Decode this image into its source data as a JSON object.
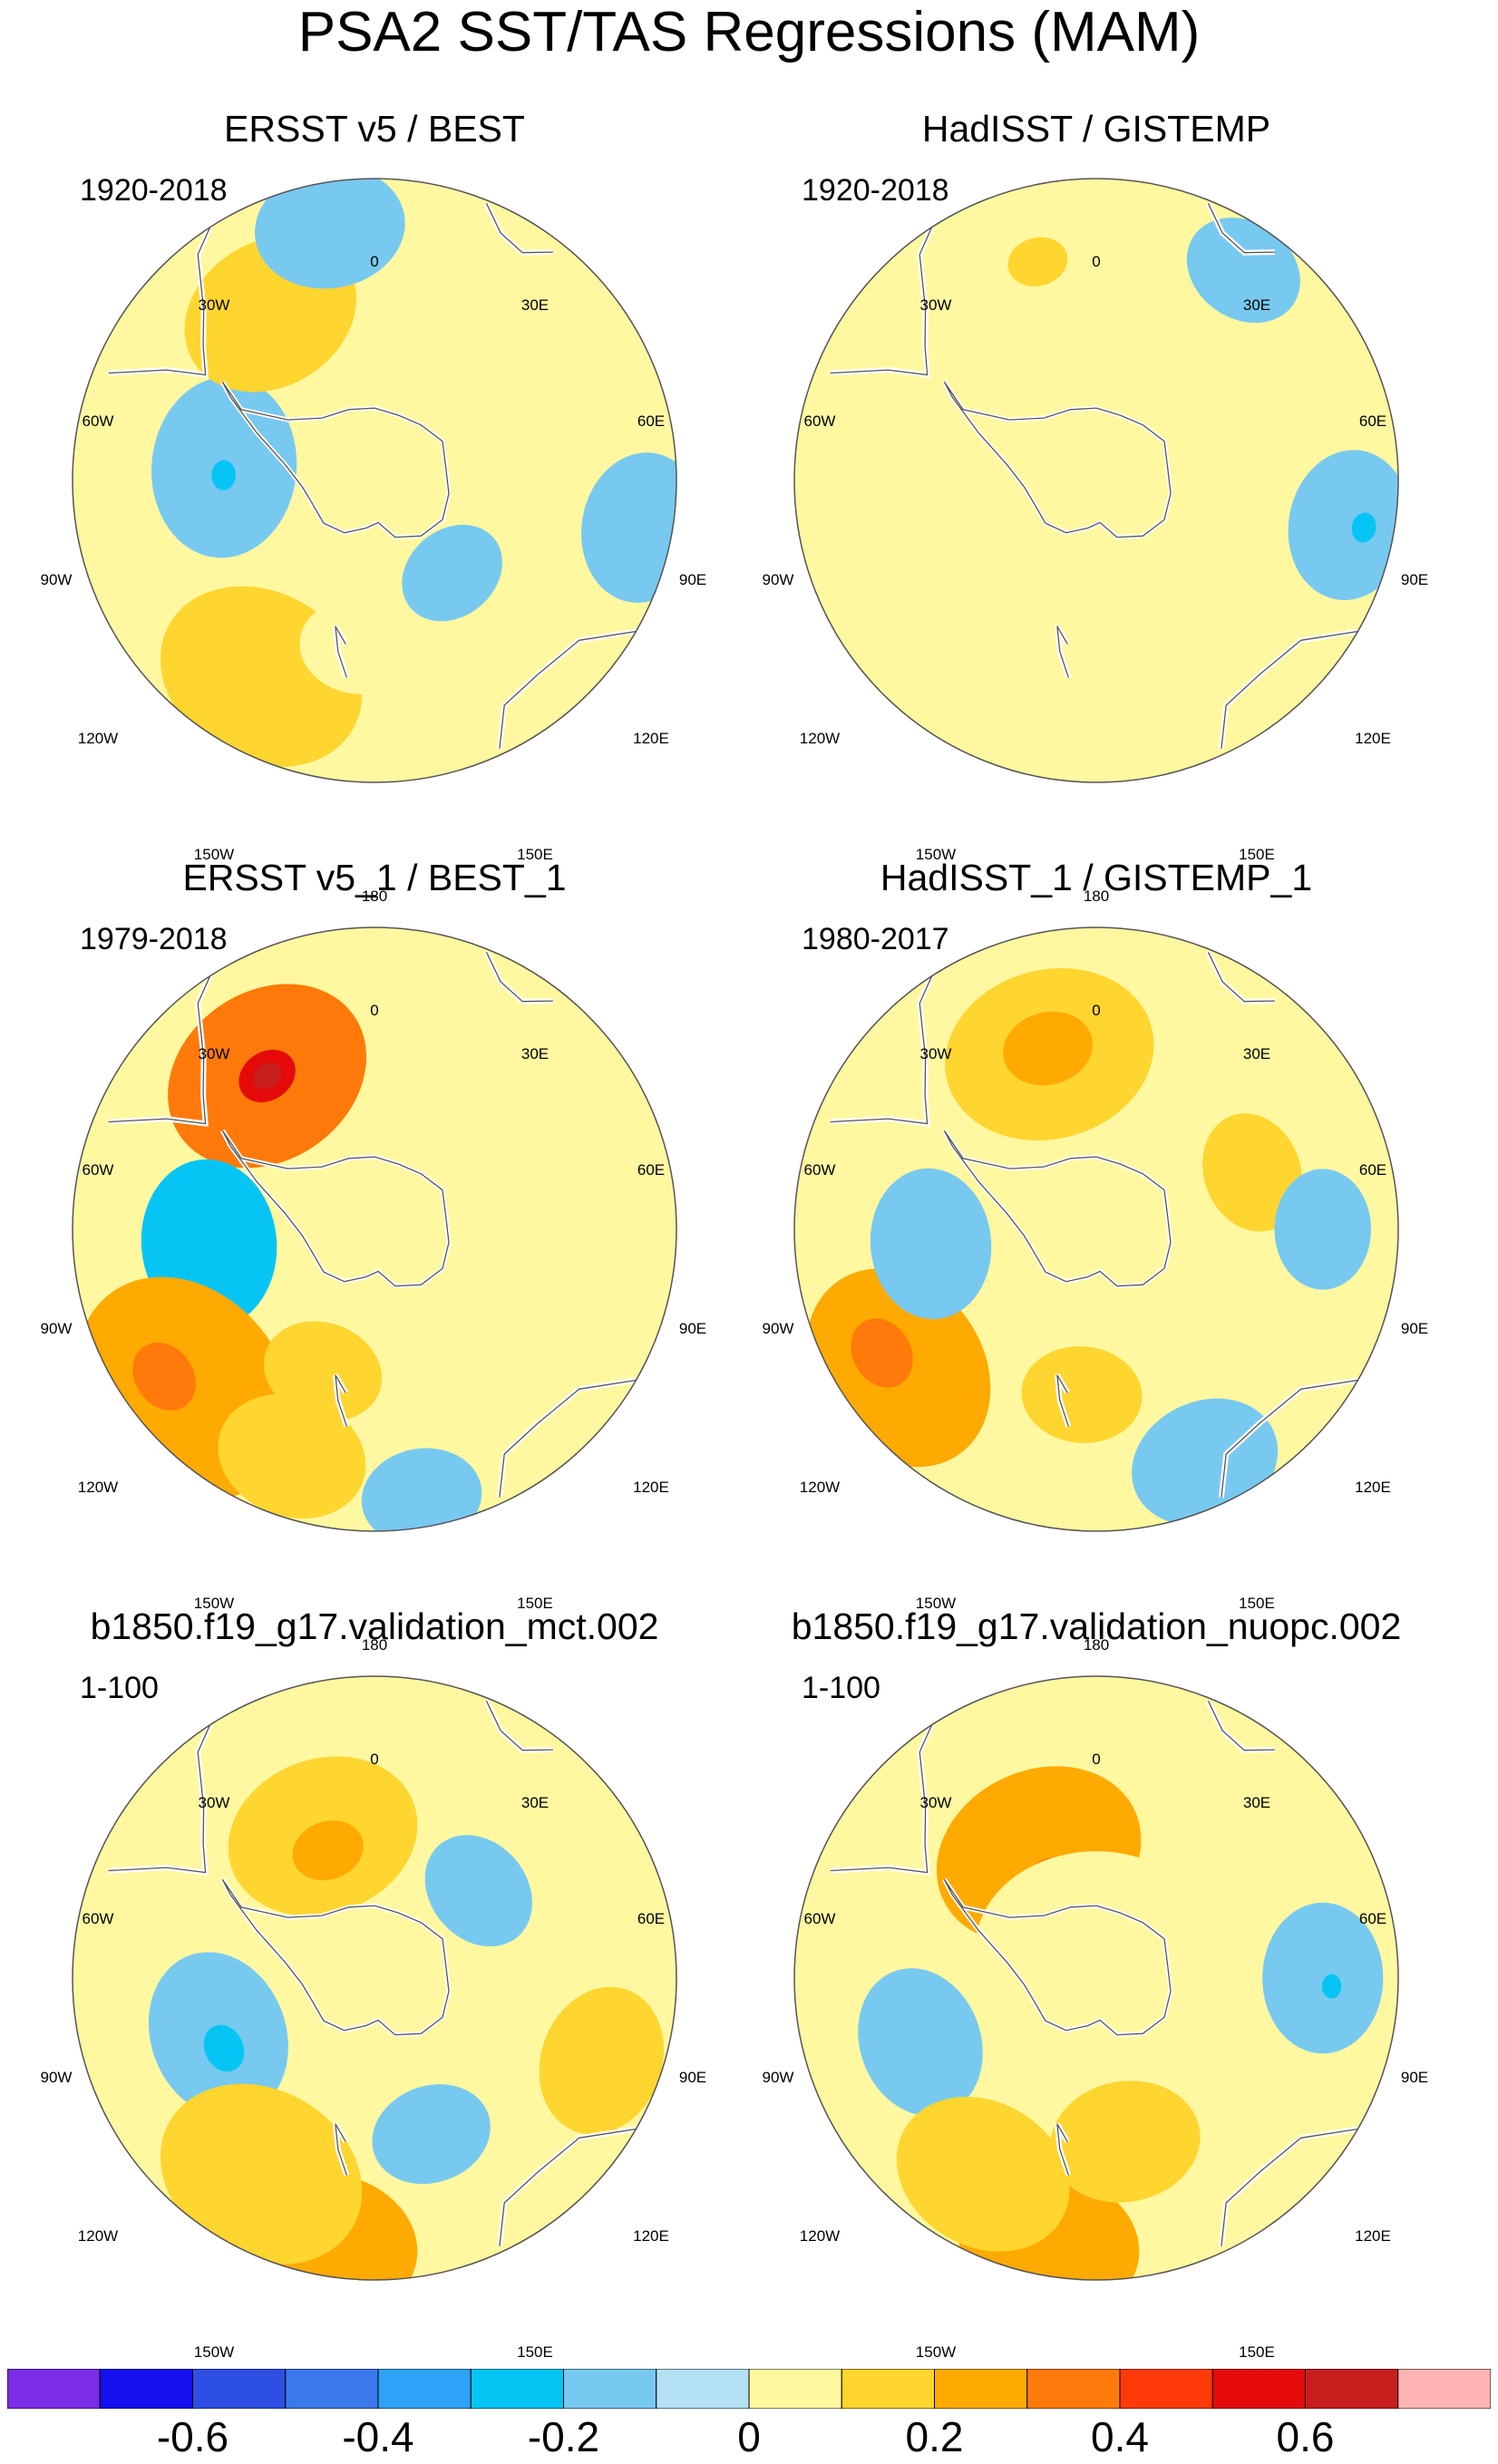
{
  "title": "PSA2 SST/TAS Regressions (MAM)",
  "chart_data": {
    "type": "heatmap",
    "projection": "south polar stereographic",
    "variable": "SST/TAS regression on PSA2",
    "season": "MAM",
    "longitude_labels": [
      "0",
      "30E",
      "60E",
      "90E",
      "120E",
      "150E",
      "180",
      "150W",
      "120W",
      "90W",
      "60W",
      "30W"
    ],
    "colorbar": {
      "levels": [
        -0.7,
        -0.6,
        -0.5,
        -0.4,
        -0.3,
        -0.2,
        -0.1,
        0,
        0.1,
        0.2,
        0.3,
        0.4,
        0.5,
        0.6,
        0.7
      ],
      "colors": [
        "#7b2ce6",
        "#1410f0",
        "#2e4fe3",
        "#3b78ec",
        "#2da2f7",
        "#06c5f5",
        "#78c9f0",
        "#b3e0f2",
        "#fff8a1",
        "#ffd530",
        "#ffaa00",
        "#ff7a0a",
        "#ff3a0a",
        "#e50b0b",
        "#c81e1e",
        "#ffb3b3"
      ],
      "tick_labels": [
        "-0.6",
        "-0.4",
        "-0.2",
        "0",
        "0.2",
        "0.4",
        "0.6"
      ],
      "tick_values": [
        -0.6,
        -0.4,
        -0.2,
        0,
        0.2,
        0.4,
        0.6
      ]
    },
    "panels": [
      {
        "title": "ERSST v5 / BEST",
        "period": "1920-2018",
        "features": [
          {
            "kind": "anomaly",
            "lon": -85,
            "lat_dist": 0.5,
            "value": -0.15,
            "extent": 0.3
          },
          {
            "kind": "anomaly",
            "lon": -88,
            "lat_dist": 0.5,
            "value": -0.25,
            "extent": 0.05
          },
          {
            "kind": "anomaly",
            "lon": -32,
            "lat_dist": 0.65,
            "value": 0.12,
            "extent": 0.3
          },
          {
            "kind": "anomaly",
            "lon": -30,
            "lat_dist": 0.72,
            "value": 0.18,
            "extent": 0.1
          },
          {
            "kind": "anomaly",
            "lon": -150,
            "lat_dist": 0.75,
            "value": 0.1,
            "extent": 0.35
          },
          {
            "kind": "anomaly",
            "lon": -110,
            "lat_dist": 0.9,
            "value": 0.08,
            "extent": 0.2
          },
          {
            "kind": "anomaly",
            "lon": -175,
            "lat_dist": 0.55,
            "value": 0.08,
            "extent": 0.2
          },
          {
            "kind": "anomaly",
            "lon": 75,
            "lat_dist": 0.6,
            "value": 0.06,
            "extent": 0.18
          },
          {
            "kind": "anomaly",
            "lon": -10,
            "lat_dist": 0.85,
            "value": -0.12,
            "extent": 0.25
          },
          {
            "kind": "anomaly",
            "lon": 100,
            "lat_dist": 0.9,
            "value": -0.12,
            "extent": 0.25
          },
          {
            "kind": "anomaly",
            "lon": 140,
            "lat_dist": 0.4,
            "value": -0.12,
            "extent": 0.18
          }
        ]
      },
      {
        "title": "HadISST / GISTEMP",
        "period": "1920-2018",
        "features": [
          {
            "kind": "anomaly",
            "lon": 160,
            "lat_dist": 0.55,
            "value": 0.08,
            "extent": 0.45
          },
          {
            "kind": "anomaly",
            "lon": -140,
            "lat_dist": 0.7,
            "value": 0.06,
            "extent": 0.35
          },
          {
            "kind": "anomaly",
            "lon": -20,
            "lat_dist": 0.7,
            "value": 0.07,
            "extent": 0.4
          },
          {
            "kind": "anomaly",
            "lon": -15,
            "lat_dist": 0.75,
            "value": 0.13,
            "extent": 0.1
          },
          {
            "kind": "anomaly",
            "lon": -95,
            "lat_dist": 0.9,
            "value": 0.06,
            "extent": 0.25
          },
          {
            "kind": "anomaly",
            "lon": 60,
            "lat_dist": 0.55,
            "value": 0.06,
            "extent": 0.25
          },
          {
            "kind": "anomaly",
            "lon": 100,
            "lat_dist": 0.85,
            "value": -0.12,
            "extent": 0.25
          },
          {
            "kind": "anomaly",
            "lon": 35,
            "lat_dist": 0.85,
            "value": -0.12,
            "extent": 0.2
          },
          {
            "kind": "anomaly",
            "lon": 100,
            "lat_dist": 0.9,
            "value": -0.25,
            "extent": 0.05
          }
        ]
      },
      {
        "title": "ERSST v5_1 / BEST_1",
        "period": "1979-2018",
        "features": [
          {
            "kind": "anomaly",
            "lon": -35,
            "lat_dist": 0.62,
            "value": 0.3,
            "extent": 0.35
          },
          {
            "kind": "anomaly",
            "lon": -35,
            "lat_dist": 0.62,
            "value": 0.52,
            "extent": 0.1
          },
          {
            "kind": "anomaly",
            "lon": -35,
            "lat_dist": 0.62,
            "value": 0.65,
            "extent": 0.05
          },
          {
            "kind": "anomaly",
            "lon": -95,
            "lat_dist": 0.55,
            "value": -0.25,
            "extent": 0.28
          },
          {
            "kind": "anomaly",
            "lon": -100,
            "lat_dist": 0.55,
            "value": -0.3,
            "extent": 0.12
          },
          {
            "kind": "anomaly",
            "lon": -130,
            "lat_dist": 0.82,
            "value": 0.25,
            "extent": 0.4
          },
          {
            "kind": "anomaly",
            "lon": -125,
            "lat_dist": 0.85,
            "value": 0.35,
            "extent": 0.12
          },
          {
            "kind": "anomaly",
            "lon": -160,
            "lat_dist": 0.8,
            "value": 0.18,
            "extent": 0.25
          },
          {
            "kind": "anomaly",
            "lon": -160,
            "lat_dist": 0.5,
            "value": 0.12,
            "extent": 0.2
          },
          {
            "kind": "anomaly",
            "lon": 70,
            "lat_dist": 0.8,
            "value": 0.08,
            "extent": 0.2
          },
          {
            "kind": "anomaly",
            "lon": 170,
            "lat_dist": 0.9,
            "value": -0.12,
            "extent": 0.2
          }
        ]
      },
      {
        "title": "HadISST_1 / GISTEMP_1",
        "period": "1980-2017",
        "features": [
          {
            "kind": "anomaly",
            "lon": -15,
            "lat_dist": 0.6,
            "value": 0.18,
            "extent": 0.35
          },
          {
            "kind": "anomaly",
            "lon": -15,
            "lat_dist": 0.62,
            "value": 0.28,
            "extent": 0.15
          },
          {
            "kind": "anomaly",
            "lon": -125,
            "lat_dist": 0.8,
            "value": 0.22,
            "extent": 0.35
          },
          {
            "kind": "anomaly",
            "lon": -120,
            "lat_dist": 0.82,
            "value": 0.32,
            "extent": 0.12
          },
          {
            "kind": "anomaly",
            "lon": -95,
            "lat_dist": 0.55,
            "value": -0.2,
            "extent": 0.25
          },
          {
            "kind": "anomaly",
            "lon": 70,
            "lat_dist": 0.55,
            "value": 0.12,
            "extent": 0.2
          },
          {
            "kind": "anomaly",
            "lon": 90,
            "lat_dist": 0.75,
            "value": -0.15,
            "extent": 0.2
          },
          {
            "kind": "anomaly",
            "lon": 155,
            "lat_dist": 0.85,
            "value": -0.15,
            "extent": 0.25
          },
          {
            "kind": "anomaly",
            "lon": -175,
            "lat_dist": 0.55,
            "value": 0.1,
            "extent": 0.2
          }
        ]
      },
      {
        "title": "b1850.f19_g17.validation_mct.002",
        "period": "1-100",
        "features": [
          {
            "kind": "anomaly",
            "lon": -20,
            "lat_dist": 0.5,
            "value": 0.18,
            "extent": 0.32
          },
          {
            "kind": "anomaly",
            "lon": -20,
            "lat_dist": 0.45,
            "value": 0.28,
            "extent": 0.12
          },
          {
            "kind": "anomaly",
            "lon": -110,
            "lat_dist": 0.55,
            "value": -0.2,
            "extent": 0.28
          },
          {
            "kind": "anomaly",
            "lon": -115,
            "lat_dist": 0.55,
            "value": -0.27,
            "extent": 0.08
          },
          {
            "kind": "anomaly",
            "lon": -170,
            "lat_dist": 0.9,
            "value": 0.25,
            "extent": 0.3
          },
          {
            "kind": "anomaly",
            "lon": -150,
            "lat_dist": 0.75,
            "value": 0.12,
            "extent": 0.35
          },
          {
            "kind": "anomaly",
            "lon": 50,
            "lat_dist": 0.45,
            "value": -0.12,
            "extent": 0.2
          },
          {
            "kind": "anomaly",
            "lon": 110,
            "lat_dist": 0.8,
            "value": 0.15,
            "extent": 0.25
          },
          {
            "kind": "anomaly",
            "lon": 160,
            "lat_dist": 0.55,
            "value": -0.12,
            "extent": 0.2
          }
        ]
      },
      {
        "title": "b1850.f19_g17.validation_nuopc.002",
        "period": "1-100",
        "features": [
          {
            "kind": "anomaly",
            "lon": -25,
            "lat_dist": 0.45,
            "value": 0.22,
            "extent": 0.35
          },
          {
            "kind": "anomaly",
            "lon": -25,
            "lat_dist": 0.35,
            "value": 0.32,
            "extent": 0.1
          },
          {
            "kind": "anomaly",
            "lon": 0,
            "lat_dist": 0.1,
            "value": 0.08,
            "extent": 0.4
          },
          {
            "kind": "anomaly",
            "lon": -110,
            "lat_dist": 0.62,
            "value": -0.18,
            "extent": 0.25
          },
          {
            "kind": "anomaly",
            "lon": -170,
            "lat_dist": 0.9,
            "value": 0.22,
            "extent": 0.3
          },
          {
            "kind": "anomaly",
            "lon": -150,
            "lat_dist": 0.75,
            "value": 0.12,
            "extent": 0.3
          },
          {
            "kind": "anomaly",
            "lon": 90,
            "lat_dist": 0.75,
            "value": -0.15,
            "extent": 0.25
          },
          {
            "kind": "anomaly",
            "lon": 92,
            "lat_dist": 0.78,
            "value": -0.28,
            "extent": 0.04
          },
          {
            "kind": "anomaly",
            "lon": 170,
            "lat_dist": 0.55,
            "value": 0.1,
            "extent": 0.25
          }
        ]
      }
    ]
  }
}
